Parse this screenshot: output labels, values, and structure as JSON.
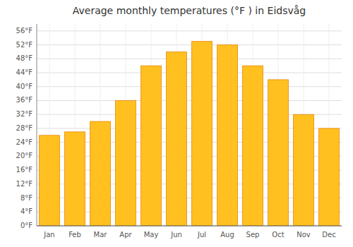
{
  "chart_data": {
    "type": "bar",
    "title": "Average monthly temperatures (°F ) in Eidsvåg",
    "categories": [
      "Jan",
      "Feb",
      "Mar",
      "Apr",
      "May",
      "Jun",
      "Jul",
      "Aug",
      "Sep",
      "Oct",
      "Nov",
      "Dec"
    ],
    "values": [
      26,
      27,
      30,
      36,
      46,
      50,
      53,
      52,
      46,
      42,
      32,
      28
    ],
    "color": "#FFC020",
    "ylim": [
      0,
      58
    ],
    "yticks": [
      {
        "value": 0,
        "label": "0°F"
      },
      {
        "value": 4,
        "label": "4°F"
      },
      {
        "value": 8,
        "label": "8°F"
      },
      {
        "value": 12,
        "label": "12°F"
      },
      {
        "value": 16,
        "label": "16°F"
      },
      {
        "value": 20,
        "label": "20°F"
      },
      {
        "value": 24,
        "label": "24°F"
      },
      {
        "value": 28,
        "label": "28°F"
      },
      {
        "value": 32,
        "label": "32°F"
      },
      {
        "value": 36,
        "label": "36°F"
      },
      {
        "value": 40,
        "label": "40°F"
      },
      {
        "value": 44,
        "label": "44°F"
      },
      {
        "value": 48,
        "label": "48°F"
      },
      {
        "value": 52,
        "label": "52°F"
      },
      {
        "value": 56,
        "label": "56°F"
      }
    ],
    "grid": true
  }
}
